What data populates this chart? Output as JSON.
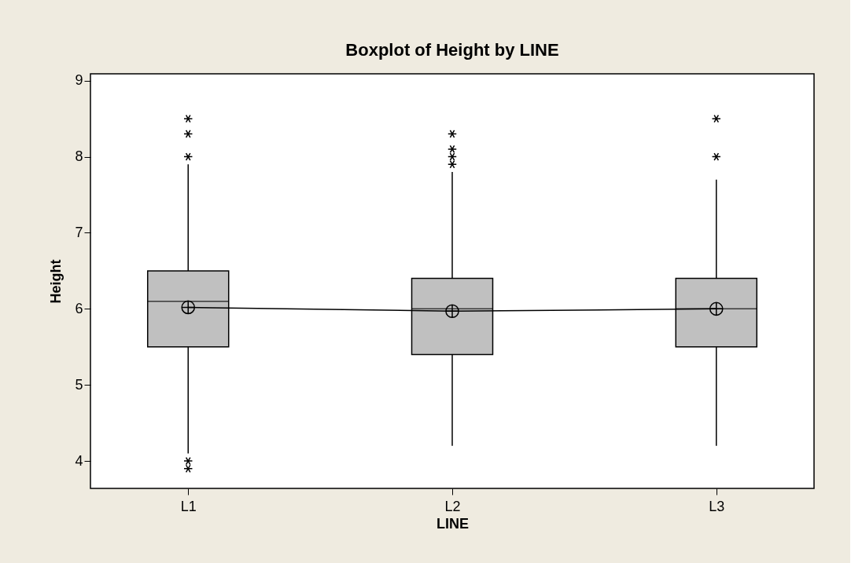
{
  "chart_data": {
    "type": "box",
    "title": "Boxplot of Height by LINE",
    "xlabel": "LINE",
    "ylabel": "Height",
    "categories": [
      "L1",
      "L2",
      "L3"
    ],
    "boxes": [
      {
        "low": 4.1,
        "q1": 5.5,
        "median": 6.1,
        "q3": 6.5,
        "high": 7.9,
        "mean": 6.02,
        "outliers": [
          8.0,
          8.3,
          8.5,
          4.0,
          3.9
        ]
      },
      {
        "low": 4.2,
        "q1": 5.4,
        "median": 6.0,
        "q3": 6.4,
        "high": 7.8,
        "mean": 5.97,
        "outliers": [
          7.9,
          8.0,
          8.1,
          8.3
        ]
      },
      {
        "low": 4.2,
        "q1": 5.5,
        "median": 6.0,
        "q3": 6.4,
        "high": 7.7,
        "mean": 6.0,
        "outliers": [
          8.0,
          8.5
        ]
      }
    ],
    "series": [
      {
        "type": "line",
        "color": "#000000",
        "values": [
          6.02,
          5.97,
          6.0
        ]
      }
    ],
    "color": "#c0c0c0",
    "ylim": [
      3.64,
      9.09
    ],
    "yticks": [
      4,
      5,
      6,
      7,
      8,
      9
    ],
    "grid": false
  }
}
